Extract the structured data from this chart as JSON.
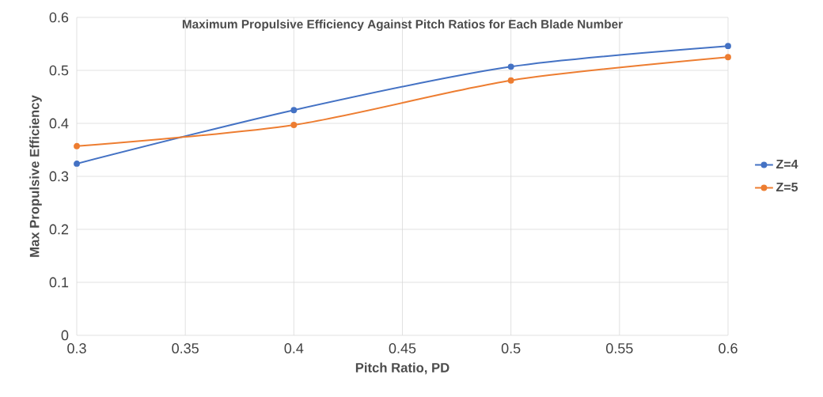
{
  "chart_data": {
    "type": "line",
    "title": "Maximum Propulsive Efficiency Against Pitch Ratios for Each Blade Number",
    "xlabel": "Pitch Ratio, PD",
    "ylabel": "Max Propulsive Efficiency",
    "x": [
      0.3,
      0.4,
      0.5,
      0.6
    ],
    "series": [
      {
        "name": "Z=4",
        "color": "#4472c4",
        "values": [
          0.324,
          0.425,
          0.507,
          0.546
        ]
      },
      {
        "name": "Z=5",
        "color": "#ed7d31",
        "values": [
          0.357,
          0.397,
          0.481,
          0.525
        ]
      }
    ],
    "xlim": [
      0.3,
      0.6
    ],
    "xticks": [
      0.3,
      0.35,
      0.4,
      0.45,
      0.5,
      0.55,
      0.6
    ],
    "ylim": [
      0,
      0.6
    ],
    "yticks": [
      0,
      0.1,
      0.2,
      0.3,
      0.4,
      0.5,
      0.6
    ],
    "grid": true,
    "legend": "right",
    "marker": "circle",
    "line_style": "solid"
  }
}
